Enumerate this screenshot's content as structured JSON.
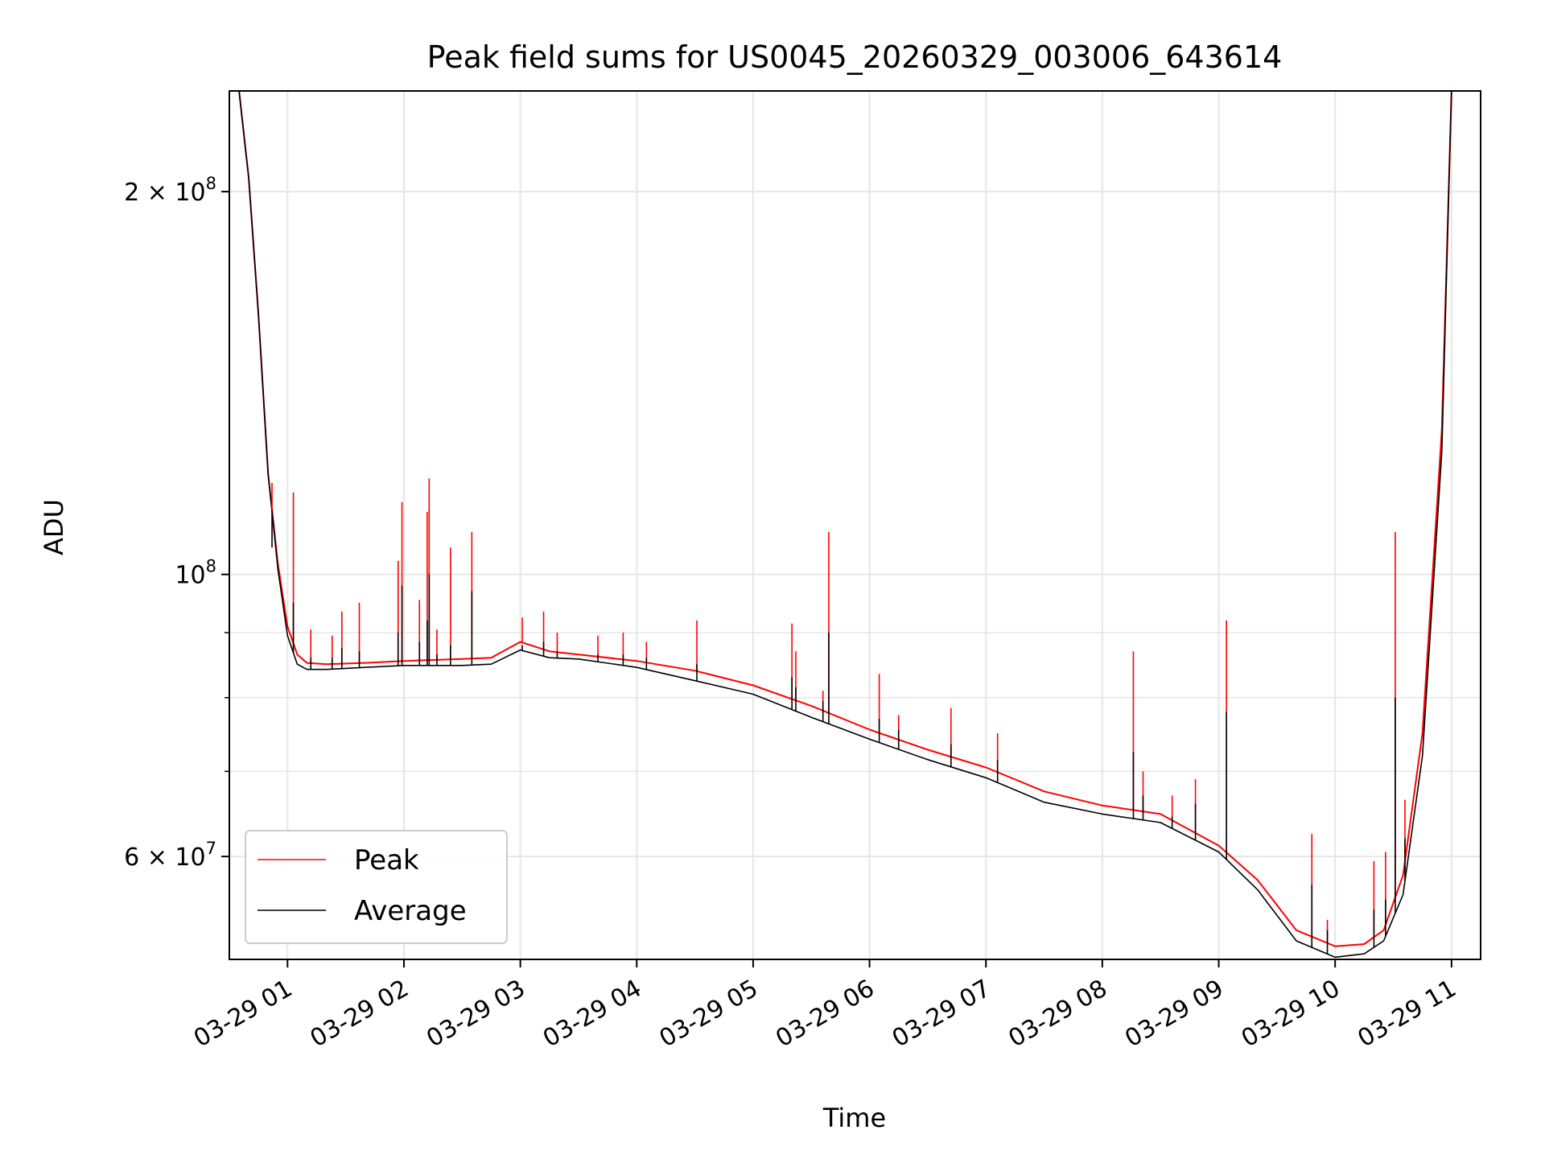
{
  "chart_data": {
    "type": "line",
    "title": "Peak field sums for US0045_20260329_003006_643614",
    "xlabel": "Time",
    "ylabel": "ADU",
    "y_scale": "log",
    "ylim": [
      49800000,
      240000000
    ],
    "xlim": [
      "03-29 00:30",
      "03-29 11:15"
    ],
    "grid": true,
    "legend_position": "lower-left",
    "x_ticks": [
      "03-29 01",
      "03-29 02",
      "03-29 03",
      "03-29 04",
      "03-29 05",
      "03-29 06",
      "03-29 07",
      "03-29 08",
      "03-29 09",
      "03-29 10",
      "03-29 11"
    ],
    "y_major_ticks": [
      {
        "value": 200000000,
        "mantissa": "2",
        "exponent": "8"
      },
      {
        "value": 100000000,
        "mantissa": "",
        "exponent": "8"
      },
      {
        "value": 60000000,
        "mantissa": "6",
        "exponent": "7"
      }
    ],
    "y_minor_ticks": [
      70000000,
      80000000,
      90000000
    ],
    "colors": {
      "peak": "#ff0000",
      "average": "#000000",
      "grid": "#e6e6e6"
    },
    "series": [
      {
        "name": "Peak",
        "key": "peak",
        "x": [
          "03-29 00:30",
          "03-29 00:35",
          "03-29 00:40",
          "03-29 00:45",
          "03-29 00:50",
          "03-29 00:55",
          "03-29 01:00",
          "03-29 01:05",
          "03-29 01:10",
          "03-29 01:20",
          "03-29 01:40",
          "03-29 02:00",
          "03-29 02:30",
          "03-29 02:45",
          "03-29 03:00",
          "03-29 03:15",
          "03-29 03:30",
          "03-29 04:00",
          "03-29 04:30",
          "03-29 05:00",
          "03-29 05:30",
          "03-29 06:00",
          "03-29 06:30",
          "03-29 07:00",
          "03-29 07:30",
          "03-29 08:00",
          "03-29 08:30",
          "03-29 09:00",
          "03-29 09:20",
          "03-29 09:40",
          "03-29 10:00",
          "03-29 10:15",
          "03-29 10:25",
          "03-29 10:35",
          "03-29 10:45",
          "03-29 10:55",
          "03-29 11:00"
        ],
        "y": [
          240000000,
          240000000,
          205000000,
          160000000,
          120000000,
          102000000,
          91000000,
          86500000,
          85200000,
          85000000,
          85200000,
          85500000,
          85800000,
          86000000,
          88500000,
          87000000,
          86500000,
          85500000,
          84000000,
          81800000,
          78800000,
          75500000,
          72800000,
          70500000,
          67500000,
          65800000,
          64800000,
          61200000,
          57500000,
          52500000,
          51000000,
          51200000,
          52500000,
          58000000,
          75000000,
          130000000,
          240000000
        ]
      },
      {
        "name": "Average",
        "key": "average",
        "x": [
          "03-29 00:30",
          "03-29 00:35",
          "03-29 00:40",
          "03-29 00:45",
          "03-29 00:50",
          "03-29 00:55",
          "03-29 01:00",
          "03-29 01:05",
          "03-29 01:10",
          "03-29 01:20",
          "03-29 01:40",
          "03-29 02:00",
          "03-29 02:30",
          "03-29 02:45",
          "03-29 03:00",
          "03-29 03:15",
          "03-29 03:30",
          "03-29 04:00",
          "03-29 04:30",
          "03-29 05:00",
          "03-29 05:30",
          "03-29 06:00",
          "03-29 06:30",
          "03-29 07:00",
          "03-29 07:30",
          "03-29 08:00",
          "03-29 08:30",
          "03-29 09:00",
          "03-29 09:20",
          "03-29 09:40",
          "03-29 10:00",
          "03-29 10:15",
          "03-29 10:25",
          "03-29 10:35",
          "03-29 10:45",
          "03-29 10:55",
          "03-29 11:00"
        ],
        "y": [
          240000000,
          240000000,
          205000000,
          160000000,
          120000000,
          101000000,
          89500000,
          85000000,
          84200000,
          84200000,
          84500000,
          84800000,
          84800000,
          85000000,
          87200000,
          86000000,
          85800000,
          84500000,
          82500000,
          80500000,
          77200000,
          74200000,
          71500000,
          69200000,
          66200000,
          64800000,
          63800000,
          60500000,
          56500000,
          51500000,
          50000000,
          50300000,
          51500000,
          56000000,
          72000000,
          125000000,
          240000000
        ]
      }
    ],
    "spikes": [
      {
        "x": "03-29 00:52",
        "peak": 118000000,
        "average": 105000000
      },
      {
        "x": "03-29 01:03",
        "peak": 116000000,
        "average": 95000000
      },
      {
        "x": "03-29 01:12",
        "peak": 90500000,
        "average": 86000000
      },
      {
        "x": "03-29 01:23",
        "peak": 89500000,
        "average": 86000000
      },
      {
        "x": "03-29 01:28",
        "peak": 93500000,
        "average": 87500000
      },
      {
        "x": "03-29 01:37",
        "peak": 95000000,
        "average": 87000000
      },
      {
        "x": "03-29 01:57",
        "peak": 102500000,
        "average": 90000000
      },
      {
        "x": "03-29 01:59",
        "peak": 114000000,
        "average": 98000000
      },
      {
        "x": "03-29 02:08",
        "peak": 95500000,
        "average": 88500000
      },
      {
        "x": "03-29 02:12",
        "peak": 112000000,
        "average": 92000000
      },
      {
        "x": "03-29 02:13",
        "peak": 119000000,
        "average": 100000000
      },
      {
        "x": "03-29 02:17",
        "peak": 90500000,
        "average": 86500000
      },
      {
        "x": "03-29 02:24",
        "peak": 105000000,
        "average": 88000000
      },
      {
        "x": "03-29 02:35",
        "peak": 108000000,
        "average": 97000000
      },
      {
        "x": "03-29 03:01",
        "peak": 92500000,
        "average": 88000000
      },
      {
        "x": "03-29 03:12",
        "peak": 93500000,
        "average": 88500000
      },
      {
        "x": "03-29 03:19",
        "peak": 90000000,
        "average": 87000000
      },
      {
        "x": "03-29 03:40",
        "peak": 89500000,
        "average": 86500000
      },
      {
        "x": "03-29 03:53",
        "peak": 90000000,
        "average": 86500000
      },
      {
        "x": "03-29 04:05",
        "peak": 88500000,
        "average": 86000000
      },
      {
        "x": "03-29 04:31",
        "peak": 92000000,
        "average": 85000000
      },
      {
        "x": "03-29 05:20",
        "peak": 91500000,
        "average": 83000000
      },
      {
        "x": "03-29 05:22",
        "peak": 87000000,
        "average": 81500000
      },
      {
        "x": "03-29 05:36",
        "peak": 81000000,
        "average": 79500000
      },
      {
        "x": "03-29 05:39",
        "peak": 108000000,
        "average": 90000000
      },
      {
        "x": "03-29 06:05",
        "peak": 83500000,
        "average": 77000000
      },
      {
        "x": "03-29 06:15",
        "peak": 77500000,
        "average": 75500000
      },
      {
        "x": "03-29 06:42",
        "peak": 78500000,
        "average": 73500000
      },
      {
        "x": "03-29 07:06",
        "peak": 75000000,
        "average": 71500000
      },
      {
        "x": "03-29 08:16",
        "peak": 87000000,
        "average": 72500000
      },
      {
        "x": "03-29 08:21",
        "peak": 70000000,
        "average": 67000000
      },
      {
        "x": "03-29 08:36",
        "peak": 67000000,
        "average": 64500000
      },
      {
        "x": "03-29 08:48",
        "peak": 69000000,
        "average": 66000000
      },
      {
        "x": "03-29 09:04",
        "peak": 92000000,
        "average": 78000000
      },
      {
        "x": "03-29 09:48",
        "peak": 62500000,
        "average": 57000000
      },
      {
        "x": "03-29 09:56",
        "peak": 53500000,
        "average": 52500000
      },
      {
        "x": "03-29 10:20",
        "peak": 59500000,
        "average": 54500000
      },
      {
        "x": "03-29 10:26",
        "peak": 60500000,
        "average": 55500000
      },
      {
        "x": "03-29 10:31",
        "peak": 108000000,
        "average": 80000000
      },
      {
        "x": "03-29 10:36",
        "peak": 66500000,
        "average": 62000000
      }
    ]
  }
}
